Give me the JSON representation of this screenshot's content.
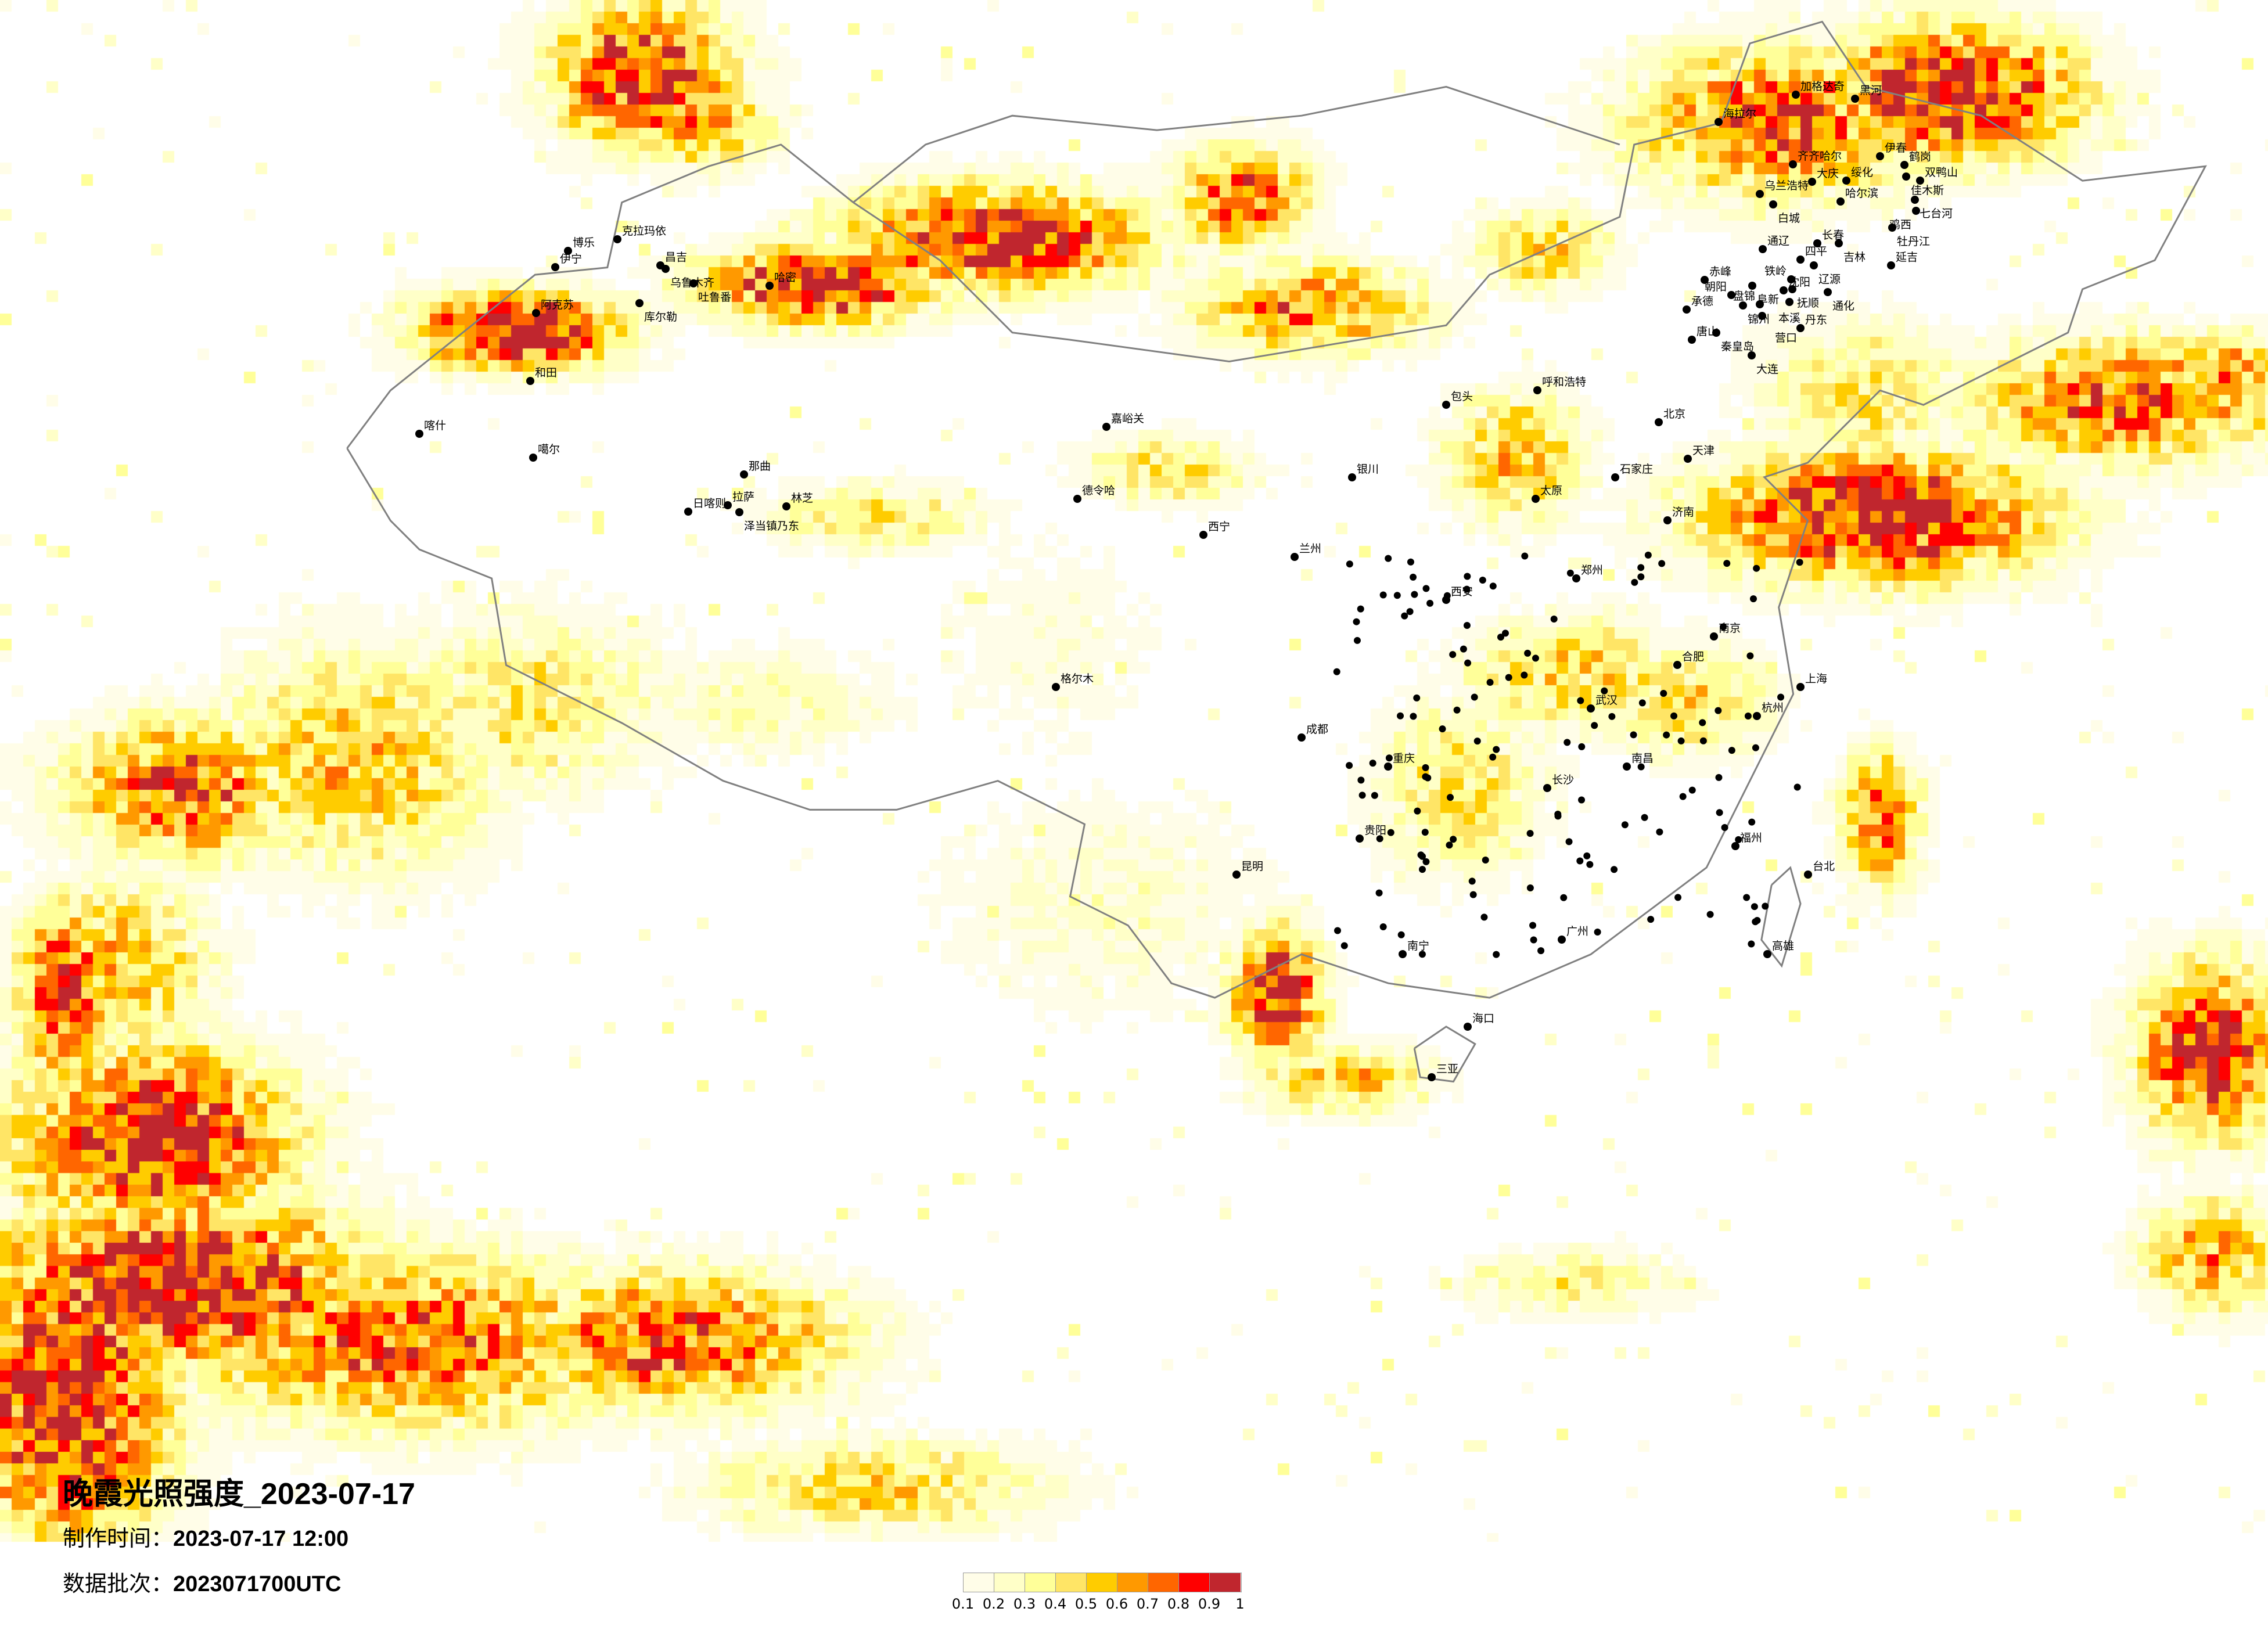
{
  "title": "晚霞光照强度_2023-07-17",
  "production_time": {
    "label": "制作时间：",
    "value": "2023-07-17 12:00"
  },
  "data_batch": {
    "label": "数据批次：",
    "value": "2023071700UTC"
  },
  "legend": {
    "ticks": [
      "0.1",
      "0.2",
      "0.3",
      "0.4",
      "0.5",
      "0.6",
      "0.7",
      "0.8",
      "0.9",
      "1"
    ],
    "colors": [
      "#fffde8",
      "#ffffc8",
      "#ffff99",
      "#ffe566",
      "#ffcc00",
      "#ff9900",
      "#ff6600",
      "#ff0000",
      "#c0262e"
    ]
  },
  "map": {
    "border_color": "#808080",
    "city_dot_color": "#000000",
    "cities": [
      "克拉玛依",
      "博乐",
      "伊宁",
      "昌吉",
      "乌鲁木齐",
      "吐鲁番",
      "哈密",
      "库尔勒",
      "阿克苏",
      "和田",
      "噶尔",
      "那曲",
      "日喀则",
      "拉萨",
      "泽当镇乃东",
      "林芝",
      "喀什",
      "加格达奇",
      "黑河",
      "海拉尔",
      "伊春",
      "齐齐哈尔",
      "鹤岗",
      "佳木斯",
      "双鸭山",
      "大庆",
      "绥化",
      "乌兰浩特",
      "白城",
      "哈尔滨",
      "七台河",
      "鸡西",
      "牡丹江",
      "长春",
      "吉林",
      "通辽",
      "四平",
      "辽源",
      "延吉",
      "赤峰",
      "铁岭",
      "阜新",
      "沈阳",
      "抚顺",
      "朝阳",
      "通化",
      "锦州",
      "盘锦",
      "本溪",
      "营口",
      "承德",
      "秦皇岛",
      "唐山",
      "丹东",
      "大连",
      "北京",
      "天津",
      "石家庄",
      "太原",
      "呼和浩特",
      "包头",
      "济南",
      "郑州",
      "西安",
      "兰州",
      "西宁",
      "银川",
      "成都",
      "重庆",
      "贵阳",
      "昆明",
      "南宁",
      "广州",
      "长沙",
      "武汉",
      "南京",
      "上海",
      "杭州",
      "福州",
      "南昌",
      "合肥",
      "海口",
      "三亚",
      "台北",
      "高雄",
      "格尔木",
      "德令哈",
      "嘉峪关"
    ]
  }
}
